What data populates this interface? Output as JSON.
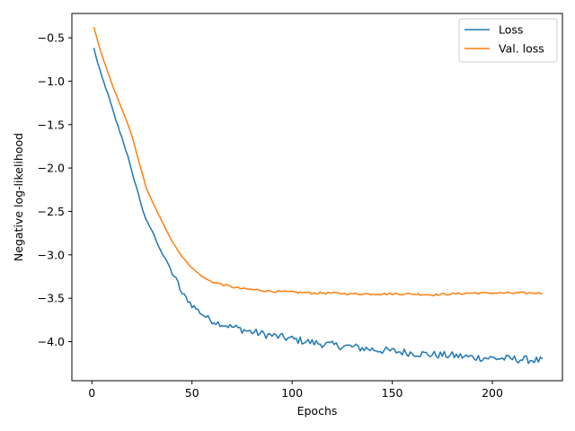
{
  "chart_data": {
    "type": "line",
    "title": "",
    "xlabel": "Epochs",
    "ylabel": "Negative log-likelihood",
    "xlim": [
      -10,
      235
    ],
    "ylim": [
      -4.45,
      -0.22
    ],
    "xticks": [
      0,
      50,
      100,
      150,
      200
    ],
    "xtick_labels": [
      "0",
      "50",
      "100",
      "150",
      "200"
    ],
    "yticks": [
      -0.5,
      -1.0,
      -1.5,
      -2.0,
      -2.5,
      -3.0,
      -3.5,
      -4.0
    ],
    "ytick_labels": [
      "−0.5",
      "−1.0",
      "−1.5",
      "−2.0",
      "−2.5",
      "−3.0",
      "−3.5",
      "−4.0"
    ],
    "grid": false,
    "legend_position": "top-right",
    "x": {
      "start": 1,
      "end": 225
    },
    "series": [
      {
        "name": "Loss",
        "color": "#1f77b4",
        "anchors": [
          [
            1,
            -0.62
          ],
          [
            3,
            -0.8
          ],
          [
            5,
            -0.95
          ],
          [
            8,
            -1.15
          ],
          [
            10,
            -1.3
          ],
          [
            12,
            -1.45
          ],
          [
            15,
            -1.65
          ],
          [
            18,
            -1.87
          ],
          [
            20,
            -2.05
          ],
          [
            22,
            -2.2
          ],
          [
            25,
            -2.45
          ],
          [
            27,
            -2.6
          ],
          [
            30,
            -2.72
          ],
          [
            33,
            -2.88
          ],
          [
            35,
            -2.98
          ],
          [
            38,
            -3.1
          ],
          [
            40,
            -3.2
          ],
          [
            43,
            -3.33
          ],
          [
            45,
            -3.45
          ],
          [
            48,
            -3.52
          ],
          [
            50,
            -3.58
          ],
          [
            53,
            -3.64
          ],
          [
            55,
            -3.68
          ],
          [
            58,
            -3.73
          ],
          [
            60,
            -3.76
          ],
          [
            65,
            -3.8
          ],
          [
            70,
            -3.83
          ],
          [
            75,
            -3.86
          ],
          [
            80,
            -3.89
          ],
          [
            90,
            -3.93
          ],
          [
            100,
            -3.97
          ],
          [
            110,
            -4.01
          ],
          [
            120,
            -4.04
          ],
          [
            130,
            -4.06
          ],
          [
            140,
            -4.09
          ],
          [
            150,
            -4.11
          ],
          [
            160,
            -4.13
          ],
          [
            170,
            -4.15
          ],
          [
            180,
            -4.16
          ],
          [
            190,
            -4.18
          ],
          [
            200,
            -4.19
          ],
          [
            210,
            -4.2
          ],
          [
            220,
            -4.21
          ],
          [
            225,
            -4.22
          ]
        ]
      },
      {
        "name": "Val. loss",
        "color": "#ff7f0e",
        "anchors": [
          [
            1,
            -0.38
          ],
          [
            3,
            -0.55
          ],
          [
            5,
            -0.7
          ],
          [
            8,
            -0.9
          ],
          [
            10,
            -1.03
          ],
          [
            12,
            -1.15
          ],
          [
            15,
            -1.32
          ],
          [
            18,
            -1.5
          ],
          [
            20,
            -1.63
          ],
          [
            22,
            -1.8
          ],
          [
            25,
            -2.05
          ],
          [
            27,
            -2.22
          ],
          [
            30,
            -2.38
          ],
          [
            33,
            -2.52
          ],
          [
            35,
            -2.62
          ],
          [
            38,
            -2.75
          ],
          [
            40,
            -2.84
          ],
          [
            43,
            -2.95
          ],
          [
            45,
            -3.02
          ],
          [
            48,
            -3.1
          ],
          [
            50,
            -3.15
          ],
          [
            53,
            -3.21
          ],
          [
            55,
            -3.25
          ],
          [
            58,
            -3.29
          ],
          [
            60,
            -3.31
          ],
          [
            65,
            -3.34
          ],
          [
            70,
            -3.37
          ],
          [
            75,
            -3.39
          ],
          [
            80,
            -3.4
          ],
          [
            90,
            -3.42
          ],
          [
            100,
            -3.43
          ],
          [
            110,
            -3.44
          ],
          [
            120,
            -3.44
          ],
          [
            130,
            -3.45
          ],
          [
            140,
            -3.45
          ],
          [
            150,
            -3.45
          ],
          [
            160,
            -3.45
          ],
          [
            170,
            -3.46
          ],
          [
            180,
            -3.45
          ],
          [
            190,
            -3.44
          ],
          [
            200,
            -3.44
          ],
          [
            210,
            -3.44
          ],
          [
            220,
            -3.44
          ],
          [
            225,
            -3.44
          ]
        ]
      }
    ]
  }
}
